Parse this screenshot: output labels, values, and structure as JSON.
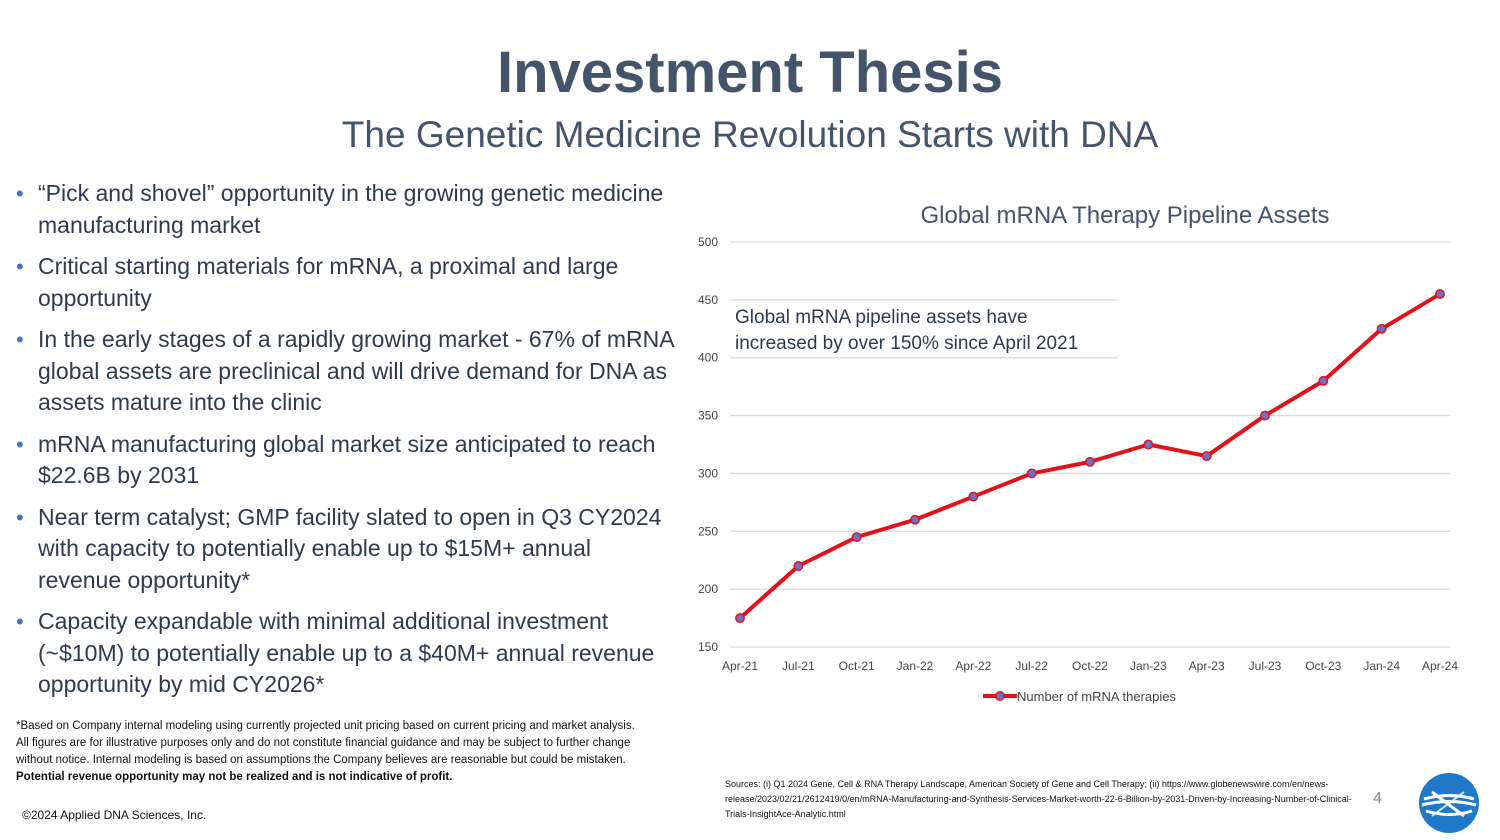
{
  "title": "Investment Thesis",
  "subtitle": "The Genetic Medicine Revolution Starts with DNA",
  "bullets": [
    "“Pick and shovel” opportunity in the growing genetic medicine manufacturing market",
    "Critical starting materials for mRNA, a proximal and large opportunity",
    "In the early stages of a rapidly growing market - 67% of mRNA global assets are preclinical and will drive demand for DNA as assets mature into the clinic",
    "mRNA manufacturing global market size anticipated to reach $22.6B by 2031",
    "Near term catalyst; GMP facility slated to open in Q3 CY2024 with capacity to potentially enable up to $15M+ annual revenue opportunity*",
    "Capacity expandable with minimal additional investment (~$10M) to potentially enable up to a $40M+ annual revenue opportunity by mid CY2026*"
  ],
  "footnote": {
    "text": "*Based on Company internal modeling using currently projected unit pricing based on current pricing and market analysis. All figures are for illustrative purposes only and do not constitute financial guidance and may be subject to further change without notice. Internal modeling is based on assumptions the Company believes are reasonable but could be mistaken.",
    "bold": "Potential revenue opportunity may not be realized and is not indicative of profit."
  },
  "copyright": "©2024 Applied DNA Sciences, Inc.",
  "sources": "Sources: (i) Q1 2024 Gene, Cell & RNA Therapy Landscape, American Society of Gene and Cell Therapy; (ii) https://www.globenewswire.com/en/news-release/2023/02/21/2612419/0/en/mRNA-Manufacturing-and-Synthesis-Services-Market-worth-22-6-Billion-by-2031-Driven-by-Increasing-Number-of-Clinical-Trials-InsightAce-Analytic.html",
  "page_number": "4",
  "colors": {
    "title": "#44546a",
    "bullet": "#4472c4",
    "line": "#e0121b",
    "marker": "#6f6fc8",
    "logo": "#1f78c8"
  },
  "logo_icon": "applied-dna-logo",
  "chart_data": {
    "type": "line",
    "title": "Global mRNA Therapy Pipeline Assets",
    "annotation": "Global mRNA pipeline assets have increased by over 150% since April 2021",
    "annotation_lines": [
      "Global mRNA pipeline assets have",
      "increased by over 150% since April 2021"
    ],
    "categories": [
      "Apr-21",
      "Jul-21",
      "Oct-21",
      "Jan-22",
      "Apr-22",
      "Jul-22",
      "Oct-22",
      "Jan-23",
      "Apr-23",
      "Jul-23",
      "Oct-23",
      "Jan-24",
      "Apr-24"
    ],
    "series": [
      {
        "name": "Number of mRNA therapies",
        "values": [
          175,
          220,
          245,
          260,
          280,
          300,
          310,
          325,
          315,
          350,
          380,
          425,
          455
        ]
      }
    ],
    "yticks": [
      150,
      200,
      250,
      300,
      350,
      400,
      450,
      500
    ],
    "ylim": [
      150,
      500
    ],
    "xlabel": "",
    "ylabel": "",
    "grid": true,
    "legend_position": "bottom"
  }
}
